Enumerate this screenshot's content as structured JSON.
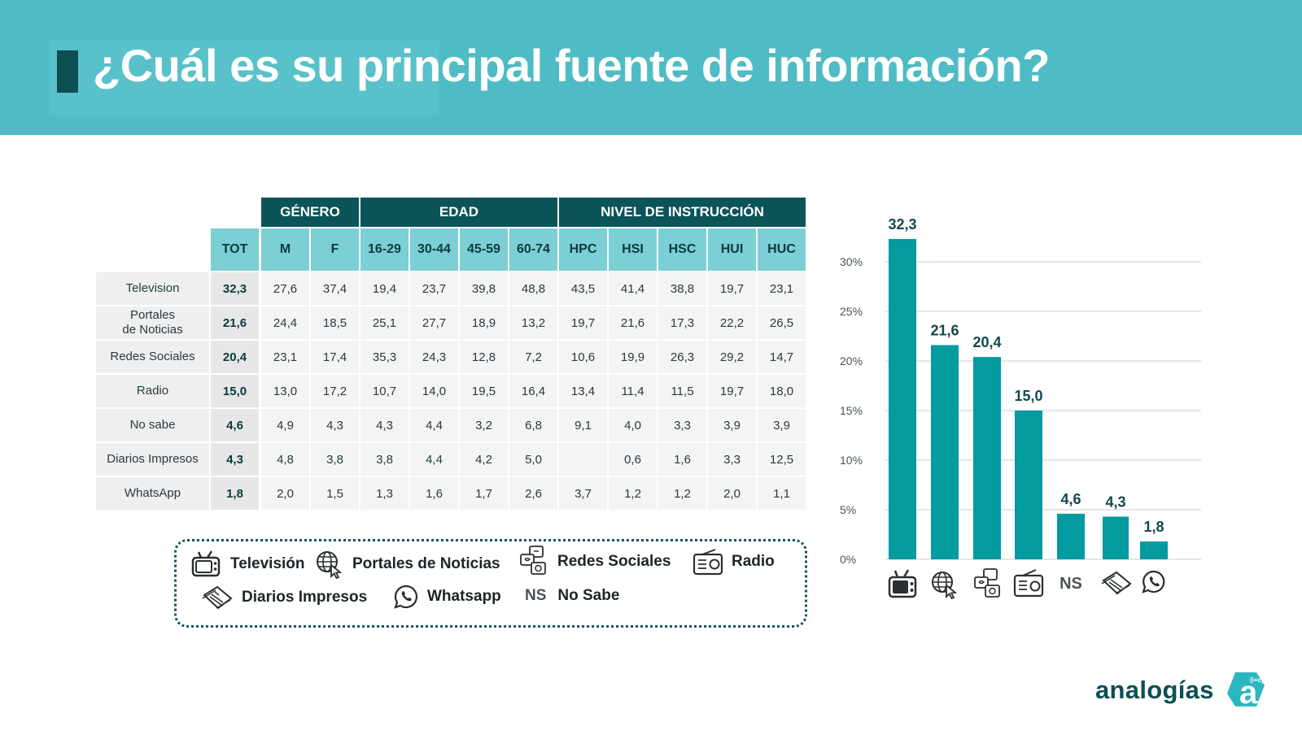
{
  "header": {
    "title": "¿Cuál es su principal fuente de información?"
  },
  "table": {
    "groups": [
      {
        "label": "GÉNERO"
      },
      {
        "label": "EDAD"
      },
      {
        "label": "NIVEL DE INSTRUCCIÓN"
      }
    ],
    "columns": [
      "TOT",
      "M",
      "F",
      "16-29",
      "30-44",
      "45-59",
      "60-74",
      "HPC",
      "HSI",
      "HSC",
      "HUI",
      "HUC"
    ],
    "rows": [
      {
        "label": "Television",
        "values": [
          "32,3",
          "27,6",
          "37,4",
          "19,4",
          "23,7",
          "39,8",
          "48,8",
          "43,5",
          "41,4",
          "38,8",
          "19,7",
          "23,1"
        ]
      },
      {
        "label": "Portales\nde Noticias",
        "values": [
          "21,6",
          "24,4",
          "18,5",
          "25,1",
          "27,7",
          "18,9",
          "13,2",
          "19,7",
          "21,6",
          "17,3",
          "22,2",
          "26,5"
        ]
      },
      {
        "label": "Redes Sociales",
        "values": [
          "20,4",
          "23,1",
          "17,4",
          "35,3",
          "24,3",
          "12,8",
          "7,2",
          "10,6",
          "19,9",
          "26,3",
          "29,2",
          "14,7"
        ]
      },
      {
        "label": "Radio",
        "values": [
          "15,0",
          "13,0",
          "17,2",
          "10,7",
          "14,0",
          "19,5",
          "16,4",
          "13,4",
          "11,4",
          "11,5",
          "19,7",
          "18,0"
        ]
      },
      {
        "label": "No sabe",
        "values": [
          "4,6",
          "4,9",
          "4,3",
          "4,3",
          "4,4",
          "3,2",
          "6,8",
          "9,1",
          "4,0",
          "3,3",
          "3,9",
          "3,9"
        ]
      },
      {
        "label": "Diarios Impresos",
        "values": [
          "4,3",
          "4,8",
          "3,8",
          "3,8",
          "4,4",
          "4,2",
          "5,0",
          "",
          "0,6",
          "1,6",
          "3,3",
          "12,5"
        ]
      },
      {
        "label": "WhatsApp",
        "values": [
          "1,8",
          "2,0",
          "1,5",
          "1,3",
          "1,6",
          "1,7",
          "2,6",
          "3,7",
          "1,2",
          "1,2",
          "2,0",
          "1,1"
        ]
      }
    ]
  },
  "legend": {
    "items": [
      {
        "icon": "tv-icon",
        "label": "Televisión"
      },
      {
        "icon": "globe-icon",
        "label": "Portales de Noticias"
      },
      {
        "icon": "social-icon",
        "label": "Redes Sociales"
      },
      {
        "icon": "radio-icon",
        "label": "Radio"
      },
      {
        "icon": "newspaper-icon",
        "label": "Diarios Impresos"
      },
      {
        "icon": "whatsapp-icon",
        "label": "Whatsapp"
      },
      {
        "icon": "ns-tag",
        "label": "No Sabe",
        "tag": "NS"
      }
    ]
  },
  "chart_data": {
    "type": "bar",
    "categories": [
      "Televisión",
      "Portales de Noticias",
      "Redes Sociales",
      "Radio",
      "NS",
      "Diarios Impresos",
      "Whatsapp"
    ],
    "category_icons": [
      "tv-icon",
      "globe-icon",
      "social-icon",
      "radio-icon",
      "NS",
      "newspaper-icon",
      "whatsapp-icon"
    ],
    "values": [
      32.3,
      21.6,
      20.4,
      15.0,
      4.6,
      4.3,
      1.8
    ],
    "value_labels": [
      "32,3",
      "21,6",
      "20,4",
      "15,0",
      "4,6",
      "4,3",
      "1,8"
    ],
    "yticks": [
      "0%",
      "5%",
      "10%",
      "15%",
      "20%",
      "25%",
      "30%"
    ],
    "ylim": [
      0,
      30
    ],
    "title": "",
    "xlabel": "",
    "ylabel": "",
    "grid": true,
    "bar_color": "#039aa0"
  },
  "logo": {
    "text": "analogías"
  },
  "colors": {
    "header": "#4fbcc5",
    "dark": "#0b5458",
    "sub": "#7ccfd4",
    "bar": "#039aa0"
  }
}
